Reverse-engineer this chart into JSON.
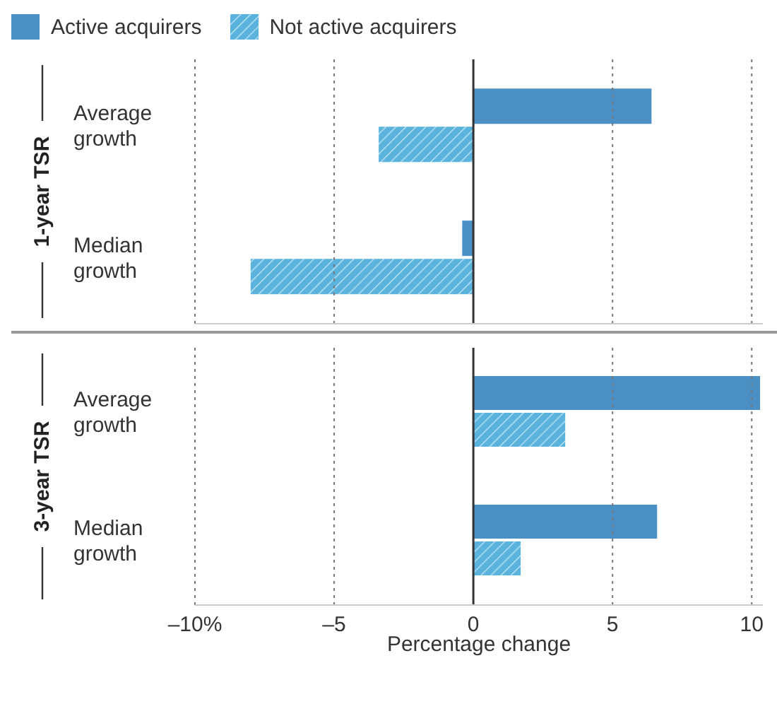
{
  "chart_data": [
    {
      "type": "bar",
      "orientation": "horizontal",
      "ylabel": "1-year TSR",
      "categories": [
        "Average growth",
        "Median growth"
      ],
      "series": [
        {
          "name": "Active acquirers",
          "color": "#4a90c4",
          "values": [
            6.4,
            -0.4
          ]
        },
        {
          "name": "Not active acquirers",
          "color": "#5ab3dc",
          "values": [
            -3.4,
            -8.0
          ]
        }
      ],
      "xlim": [
        -10,
        10.4
      ],
      "xticks": [
        -10,
        -5,
        0,
        5,
        10
      ],
      "tick_labels": false,
      "grid": "x",
      "legend": "top left",
      "ref_lines": [
        {
          "axis": "x",
          "value": 0,
          "label": null,
          "color": "#333333",
          "line_style": "solid"
        }
      ]
    },
    {
      "type": "bar",
      "orientation": "horizontal",
      "ylabel": "3-year TSR",
      "xlabel": "Percentage change",
      "categories": [
        "Average growth",
        "Median growth"
      ],
      "series": [
        {
          "color": "#4a90c4",
          "values": [
            10.3,
            6.6
          ]
        },
        {
          "color": "#5ab3dc",
          "values": [
            3.3,
            1.7
          ]
        }
      ],
      "xlim": [
        -10,
        10.4
      ],
      "xticks": [
        {
          "value": -10,
          "label": "–10%"
        },
        {
          "value": -5,
          "label": "–5"
        },
        0,
        5,
        10
      ],
      "tick_labels": "x",
      "grid": "x",
      "legend": false,
      "ref_lines": [
        {
          "axis": "x",
          "value": 0,
          "label": null,
          "color": "#333333",
          "line_style": "solid"
        }
      ]
    }
  ]
}
